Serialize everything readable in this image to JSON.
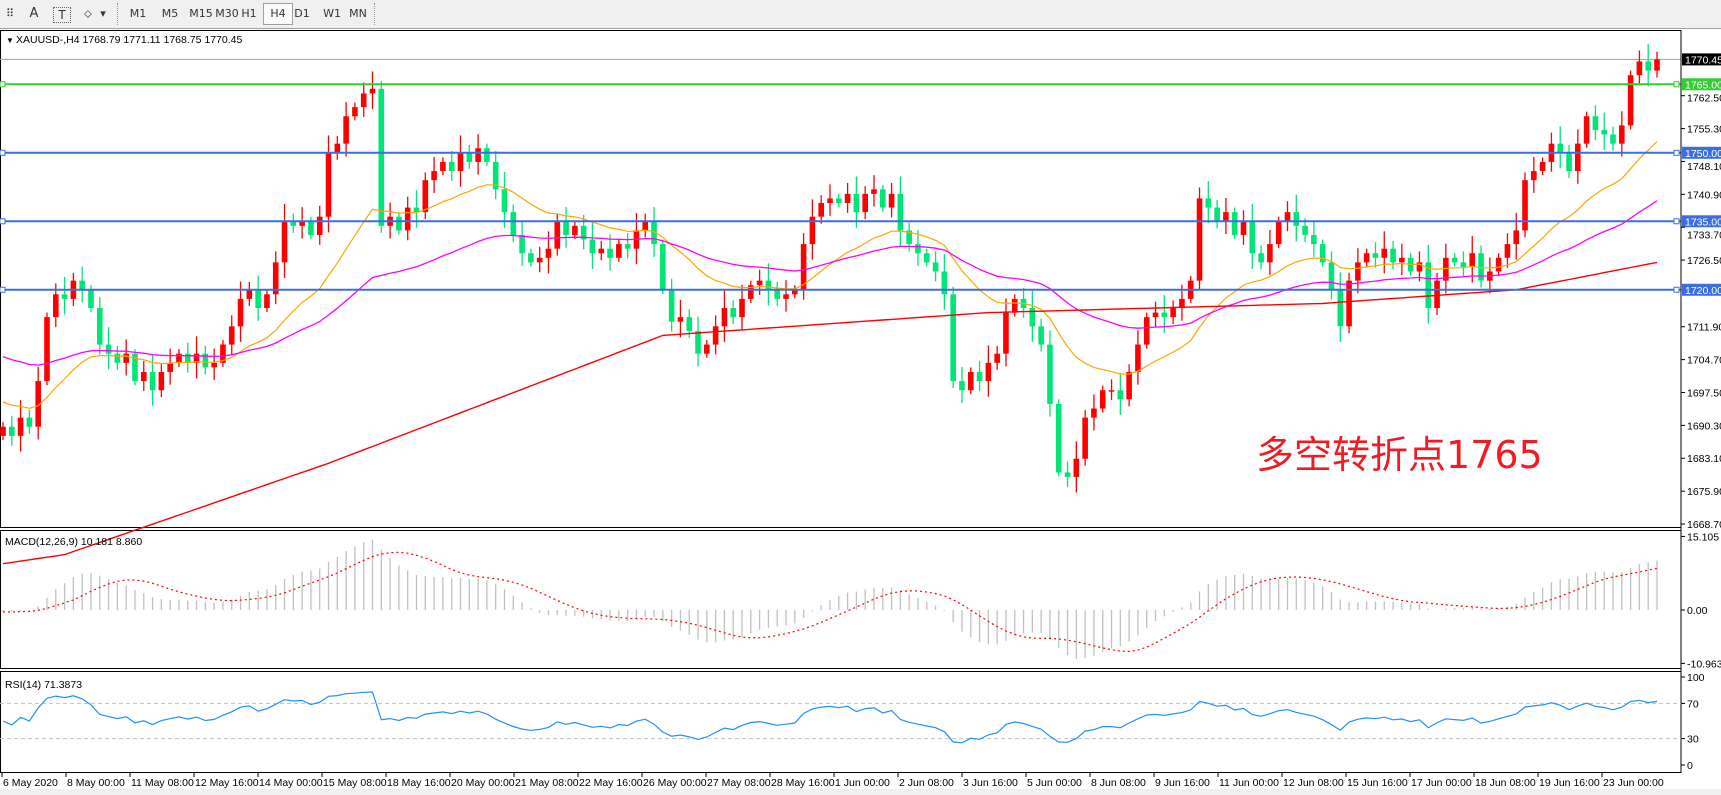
{
  "toolbar": {
    "tools": [
      {
        "name": "fibo-tool-icon",
        "glyph": "⠿"
      },
      {
        "name": "text-tool-icon",
        "glyph": "A"
      },
      {
        "name": "text-label-tool-icon",
        "glyph": "T"
      },
      {
        "name": "arrows-tool-icon",
        "glyph": "⬦"
      }
    ],
    "dropdown_glyph": "▾",
    "timeframes": [
      "M1",
      "M5",
      "M15",
      "M30",
      "H1",
      "H4",
      "D1",
      "W1",
      "MN"
    ],
    "active_timeframe": "H4"
  },
  "chart_header": {
    "triangle": "▼",
    "title": "XAUUSD-,H4  1768.79 1771.11 1768.75 1770.45"
  },
  "annotation": "多空转折点1765",
  "colors": {
    "up_candle": "#ff0000",
    "down_candle": "#00e676",
    "ma_fast": "#ffa500",
    "ma_mid": "#ff00ff",
    "ma_slow": "#ff0000",
    "level_green": "#33cc33",
    "level_blue": "#3b6ee0",
    "macd_hist": "#c0c0c0",
    "macd_signal": "#ff0000",
    "rsi": "#1e90ff",
    "current_price_bg": "#000000"
  },
  "chart_data": [
    {
      "type": "candlestick",
      "symbol": "XAUUSD-",
      "timeframe": "H4",
      "ylim": [
        1668.7,
        1773.0
      ],
      "current_price": 1770.45,
      "price_ticks": [
        "1762.50",
        "1755.30",
        "1748.10",
        "1740.90",
        "1733.70",
        "1726.50",
        "1711.90",
        "1704.70",
        "1697.50",
        "1690.30",
        "1683.10",
        "1675.90",
        "1668.70"
      ],
      "horizontal_levels": [
        {
          "value": 1765.0,
          "label": "1765.00",
          "color": "green"
        },
        {
          "value": 1750.0,
          "label": "1750.00",
          "color": "blue"
        },
        {
          "value": 1735.0,
          "label": "1735.00",
          "color": "blue"
        },
        {
          "value": 1720.0,
          "label": "1720.00",
          "color": "blue"
        }
      ],
      "current_price_label": "1770.45",
      "x_labels": [
        "6 May 2020",
        "8 May 00:00",
        "11 May 08:00",
        "12 May 16:00",
        "14 May 00:00",
        "15 May 08:00",
        "18 May 16:00",
        "20 May 00:00",
        "21 May 08:00",
        "22 May 16:00",
        "26 May 00:00",
        "27 May 08:00",
        "28 May 16:00",
        "1 Jun 00:00",
        "2 Jun 08:00",
        "3 Jun 16:00",
        "5 Jun 00:00",
        "8 Jun 08:00",
        "9 Jun 16:00",
        "11 Jun 00:00",
        "12 Jun 08:00",
        "15 Jun 16:00",
        "17 Jun 00:00",
        "18 Jun 08:00",
        "19 Jun 16:00",
        "23 Jun 00:00"
      ],
      "closes": [
        1690,
        1688,
        1692,
        1690,
        1700,
        1714,
        1719,
        1718,
        1722,
        1720,
        1716,
        1708,
        1706,
        1704,
        1706,
        1700,
        1702,
        1698,
        1702,
        1704,
        1706,
        1704,
        1706,
        1703,
        1704,
        1708,
        1712,
        1718,
        1720,
        1716,
        1719,
        1726,
        1735,
        1734,
        1735,
        1732,
        1736,
        1750,
        1752,
        1758,
        1760,
        1763,
        1764,
        1734,
        1736,
        1733,
        1738,
        1737,
        1744,
        1746,
        1748,
        1746,
        1750,
        1748,
        1751,
        1748,
        1742,
        1737,
        1732,
        1728,
        1726,
        1727,
        1729,
        1735,
        1732,
        1734,
        1731,
        1728,
        1729,
        1727,
        1730,
        1729,
        1733,
        1735,
        1730,
        1720,
        1713,
        1714,
        1711,
        1706,
        1708,
        1712,
        1716,
        1714,
        1718,
        1721,
        1722,
        1720,
        1718,
        1719,
        1720,
        1730,
        1736,
        1739,
        1740,
        1739,
        1741,
        1737,
        1741,
        1742,
        1738,
        1741,
        1733,
        1730,
        1728,
        1726,
        1724,
        1719,
        1700,
        1698,
        1702,
        1700,
        1704,
        1706,
        1715,
        1718,
        1716,
        1712,
        1708,
        1695,
        1680,
        1679,
        1683,
        1692,
        1694,
        1698,
        1698,
        1696,
        1702,
        1708,
        1714,
        1715,
        1714,
        1716,
        1718,
        1722,
        1740,
        1738,
        1735,
        1737,
        1732,
        1735,
        1728,
        1726,
        1730,
        1735,
        1737,
        1734,
        1732,
        1730,
        1726,
        1720,
        1712,
        1722,
        1726,
        1728,
        1727,
        1729,
        1726,
        1727,
        1724,
        1726,
        1716,
        1722,
        1727,
        1726,
        1725,
        1728,
        1722,
        1724,
        1727,
        1730,
        1733,
        1744,
        1746,
        1748,
        1752,
        1750,
        1746,
        1752,
        1758,
        1755,
        1754,
        1752,
        1756,
        1767,
        1770,
        1768,
        1770.45
      ],
      "ma_slow_points": [
        [
          0,
          1660
        ],
        [
          7,
          1662
        ],
        [
          37,
          1682
        ],
        [
          75,
          1710
        ],
        [
          112,
          1715
        ],
        [
          150,
          1717
        ],
        [
          172,
          1720
        ],
        [
          188,
          1726
        ]
      ]
    },
    {
      "type": "bar+line",
      "label": "MACD(12,26,9) 10.181 8.860",
      "params": [
        12,
        26,
        9
      ],
      "main": 10.181,
      "signal": 8.86,
      "ylim": [
        -10.963,
        15.105
      ],
      "ticks": [
        "15.105",
        "0.00",
        "-10.963"
      ]
    },
    {
      "type": "line",
      "label": "RSI(14) 71.3873",
      "period": 14,
      "value": 71.3873,
      "ylim": [
        0,
        100
      ],
      "levels": [
        30,
        70
      ],
      "ticks": [
        "100",
        "70",
        "30",
        "0"
      ]
    }
  ]
}
